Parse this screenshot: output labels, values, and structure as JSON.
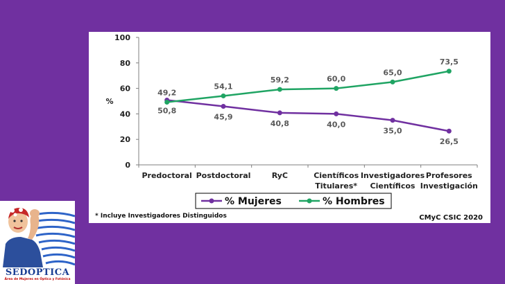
{
  "chart_data": {
    "type": "line",
    "ylabel": "%",
    "ylim": [
      0,
      100
    ],
    "yticks": [
      "0",
      "20",
      "40",
      "60",
      "80",
      "100"
    ],
    "grid": false,
    "legend_position": "bottom",
    "categories": [
      [
        "Predoctoral"
      ],
      [
        "Postdoctoral"
      ],
      [
        "RyC"
      ],
      [
        "Científicos",
        "Titulares*"
      ],
      [
        "Investigadores",
        "Científicos"
      ],
      [
        "Profesores",
        "Investigación"
      ]
    ],
    "series": [
      {
        "name": "% Mujeres",
        "color": "#7030a0",
        "values": [
          50.8,
          45.9,
          40.8,
          40.0,
          35.0,
          26.5
        ],
        "labels": [
          "50,8",
          "45,9",
          "40,8",
          "40,0",
          "35,0",
          "26,5"
        ],
        "label_position": "below"
      },
      {
        "name": "% Hombres",
        "color": "#1fa463",
        "values": [
          49.2,
          54.1,
          59.2,
          60.0,
          65.0,
          73.5
        ],
        "labels": [
          "49,2",
          "54,1",
          "59,2",
          "60,0",
          "65,0",
          "73,5"
        ],
        "label_position": "above"
      }
    ],
    "footnote": "* Incluye Investigadores Distinguidos",
    "credit": "CMyC CSIC 2020"
  },
  "logo": {
    "name": "SEDOPTICA",
    "tagline": "Área de Mujeres en Óptica y Fotónica"
  },
  "colors": {
    "background": "#7030a0",
    "panel": "#ffffff"
  }
}
